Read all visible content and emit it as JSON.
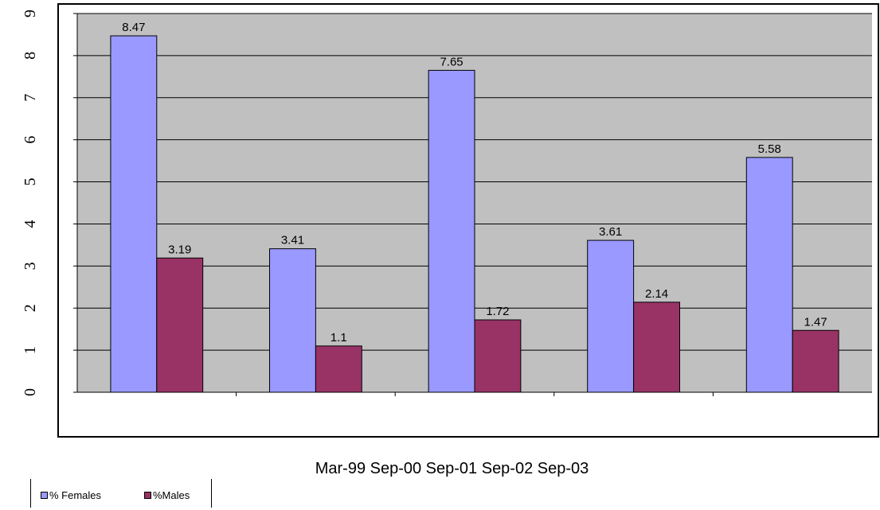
{
  "chart_data": {
    "type": "bar",
    "categories": [
      "Mar-99",
      "Sep-00",
      "Sep-01",
      "Sep-02",
      "Sep-03"
    ],
    "categories_text": "Mar-99 Sep-00 Sep-01 Sep-02 Sep-03",
    "series": [
      {
        "name": "% Females",
        "values": [
          8.47,
          3.41,
          7.65,
          3.61,
          5.58
        ],
        "color": "#9999ff"
      },
      {
        "name": "%Males",
        "values": [
          3.19,
          1.1,
          1.72,
          2.14,
          1.47
        ],
        "color": "#993366"
      }
    ],
    "data_labels": [
      [
        "8.47",
        "3.41",
        "7.65",
        "3.61",
        "5.58"
      ],
      [
        "3.19",
        "1.1",
        "1.72",
        "2.14",
        "1.47"
      ]
    ],
    "ylim": [
      0,
      9
    ],
    "yticks": [
      "0",
      "1",
      "2",
      "3",
      "4",
      "5",
      "6",
      "7",
      "8",
      "9"
    ],
    "grid": true,
    "plot_background": "#c0c0c0",
    "legend_position": "bottom-left",
    "ytick_orientation": "rotated"
  }
}
